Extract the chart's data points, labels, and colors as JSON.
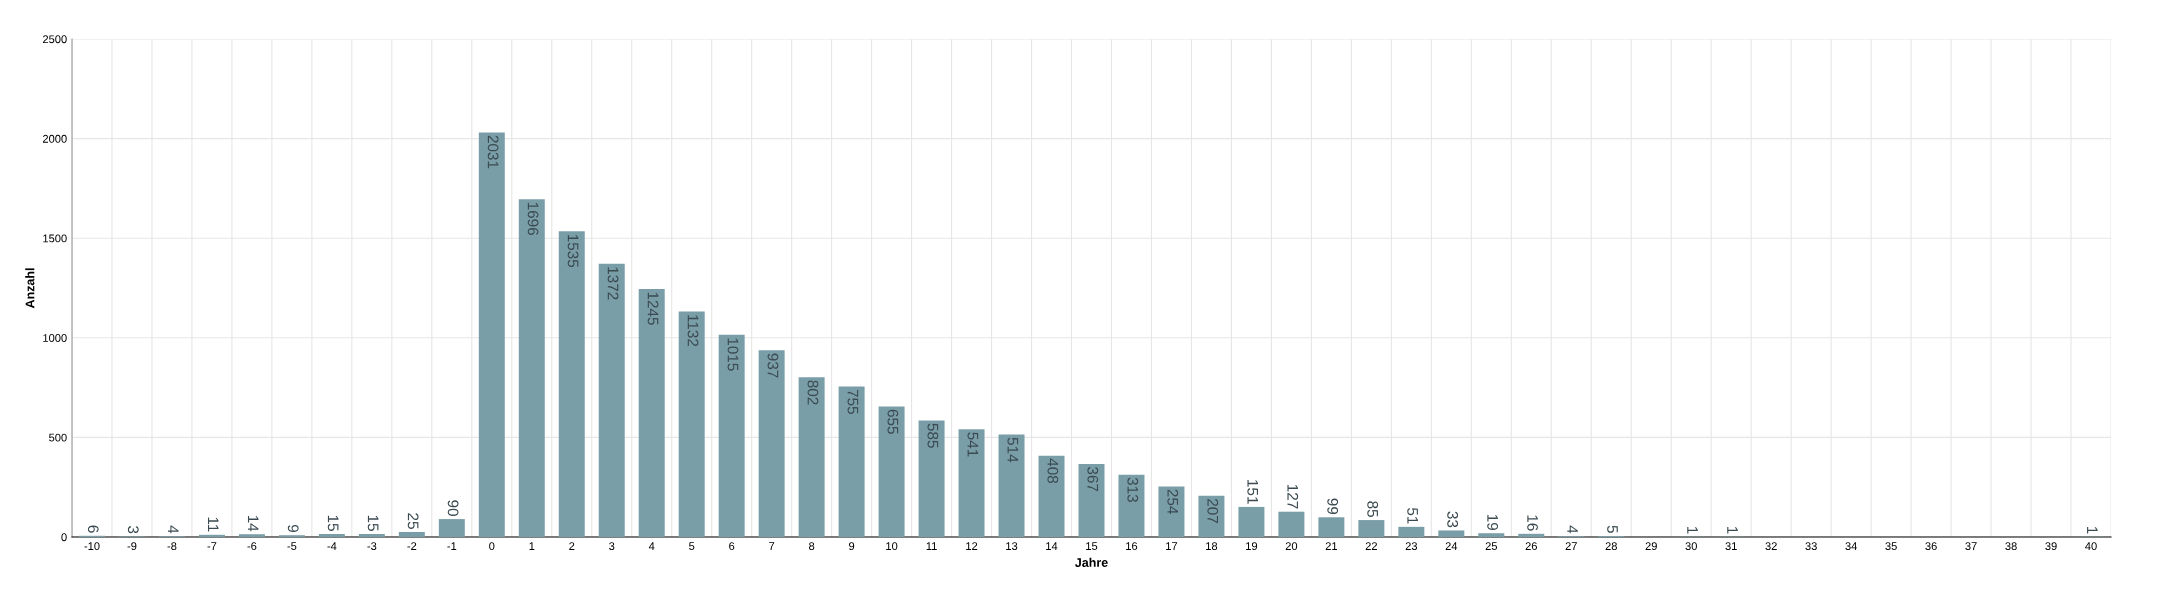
{
  "chart_data": {
    "type": "bar",
    "xlabel": "Jahre",
    "ylabel": "Anzahl",
    "categories": [
      "-10",
      "-9",
      "-8",
      "-7",
      "-6",
      "-5",
      "-4",
      "-3",
      "-2",
      "-1",
      "0",
      "1",
      "2",
      "3",
      "4",
      "5",
      "6",
      "7",
      "8",
      "9",
      "10",
      "11",
      "12",
      "13",
      "14",
      "15",
      "16",
      "17",
      "18",
      "19",
      "20",
      "21",
      "22",
      "23",
      "24",
      "25",
      "26",
      "27",
      "28",
      "29",
      "30",
      "31",
      "32",
      "33",
      "34",
      "35",
      "36",
      "37",
      "38",
      "39",
      "40"
    ],
    "values": [
      6,
      3,
      4,
      11,
      14,
      9,
      15,
      15,
      25,
      90,
      2031,
      1696,
      1535,
      1372,
      1245,
      1132,
      1015,
      937,
      802,
      755,
      655,
      585,
      541,
      514,
      408,
      367,
      313,
      254,
      207,
      151,
      127,
      99,
      85,
      51,
      33,
      19,
      16,
      4,
      5,
      0,
      1,
      1,
      0,
      0,
      0,
      0,
      0,
      0,
      0,
      0,
      1
    ],
    "value_labels": [
      "6",
      "3",
      "4",
      "11",
      "14",
      "9",
      "15",
      "15",
      "25",
      "90",
      "2031",
      "1696",
      "1535",
      "1372",
      "1245",
      "1132",
      "1015",
      "937",
      "802",
      "755",
      "655",
      "585",
      "541",
      "514",
      "408",
      "367",
      "313",
      "254",
      "207",
      "151",
      "127",
      "99",
      "85",
      "51",
      "33",
      "19",
      "16",
      "4",
      "5",
      null,
      "1",
      "1",
      null,
      null,
      null,
      null,
      null,
      null,
      null,
      null,
      "1"
    ],
    "color": "#7a9ea8",
    "ylim": [
      0,
      2500
    ],
    "yticks": [
      0,
      500,
      1000,
      1500,
      2000,
      2500
    ],
    "grid": true
  }
}
